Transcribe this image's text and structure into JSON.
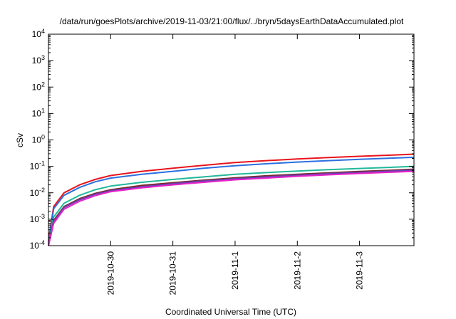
{
  "chart_data": {
    "type": "line",
    "title": "/data/run/goesPlots/archive/2019-11-03/21:00/flux/../bryn/5daysEarthDataAccumulated.plot",
    "xlabel": "Coordinated Universal Time (UTC)",
    "ylabel": "cSv",
    "y_scale": "log",
    "ylim": [
      0.0001,
      10000
    ],
    "y_ticks": [
      {
        "value": 0.0001,
        "base": "10",
        "exp": "-4"
      },
      {
        "value": 0.001,
        "base": "10",
        "exp": "-3"
      },
      {
        "value": 0.01,
        "base": "10",
        "exp": "-2"
      },
      {
        "value": 0.1,
        "base": "10",
        "exp": "-1"
      },
      {
        "value": 1,
        "base": "10",
        "exp": "0"
      },
      {
        "value": 10,
        "base": "10",
        "exp": "1"
      },
      {
        "value": 100,
        "base": "10",
        "exp": "2"
      },
      {
        "value": 1000,
        "base": "10",
        "exp": "3"
      },
      {
        "value": 10000,
        "base": "10",
        "exp": "4"
      }
    ],
    "xlim": [
      "2019-10-29T00:00",
      "2019-11-03T21:00"
    ],
    "x_ticks": [
      "2019-10-30",
      "2019-10-31",
      "2019-11-1",
      "2019-11-2",
      "2019-11-3"
    ],
    "x_tick_values": [
      "2019-10-30T00:00",
      "2019-10-31T00:00",
      "2019-11-01T00:00",
      "2019-11-02T00:00",
      "2019-11-03T00:00"
    ],
    "grid": false,
    "legend": "none",
    "x": [
      "2019-10-29T00:00",
      "2019-10-29T02:00",
      "2019-10-29T06:00",
      "2019-10-29T12:00",
      "2019-10-29T18:00",
      "2019-10-30T00:00",
      "2019-10-30T12:00",
      "2019-10-31T00:00",
      "2019-10-31T12:00",
      "2019-11-01T00:00",
      "2019-11-01T12:00",
      "2019-11-02T00:00",
      "2019-11-02T12:00",
      "2019-11-03T00:00",
      "2019-11-03T12:00",
      "2019-11-03T21:00"
    ],
    "series": [
      {
        "color": "#e8141c",
        "values": [
          0.00015,
          0.003,
          0.01,
          0.02,
          0.032,
          0.045,
          0.065,
          0.085,
          0.11,
          0.14,
          0.165,
          0.19,
          0.215,
          0.24,
          0.265,
          0.29
        ]
      },
      {
        "color": "#2c6fe0",
        "values": [
          0.00012,
          0.0025,
          0.008,
          0.016,
          0.026,
          0.036,
          0.05,
          0.065,
          0.085,
          0.105,
          0.125,
          0.145,
          0.165,
          0.185,
          0.205,
          0.22
        ]
      },
      {
        "color": "#22b89a",
        "values": [
          0.0001,
          0.0012,
          0.004,
          0.008,
          0.013,
          0.018,
          0.025,
          0.032,
          0.04,
          0.05,
          0.058,
          0.066,
          0.075,
          0.083,
          0.092,
          0.1
        ]
      },
      {
        "color": "#7a2a2a",
        "values": [
          0.0001,
          0.0009,
          0.003,
          0.006,
          0.0095,
          0.013,
          0.019,
          0.024,
          0.03,
          0.037,
          0.044,
          0.05,
          0.057,
          0.064,
          0.071,
          0.078
        ]
      },
      {
        "color": "#6a3fb0",
        "values": [
          0.0001,
          0.0008,
          0.0028,
          0.0055,
          0.0088,
          0.012,
          0.017,
          0.022,
          0.028,
          0.034,
          0.04,
          0.046,
          0.053,
          0.059,
          0.066,
          0.072
        ]
      },
      {
        "color": "#e822c8",
        "values": [
          0.0001,
          0.0007,
          0.0024,
          0.0048,
          0.0078,
          0.011,
          0.0155,
          0.02,
          0.025,
          0.031,
          0.036,
          0.042,
          0.048,
          0.054,
          0.06,
          0.065
        ]
      }
    ]
  }
}
